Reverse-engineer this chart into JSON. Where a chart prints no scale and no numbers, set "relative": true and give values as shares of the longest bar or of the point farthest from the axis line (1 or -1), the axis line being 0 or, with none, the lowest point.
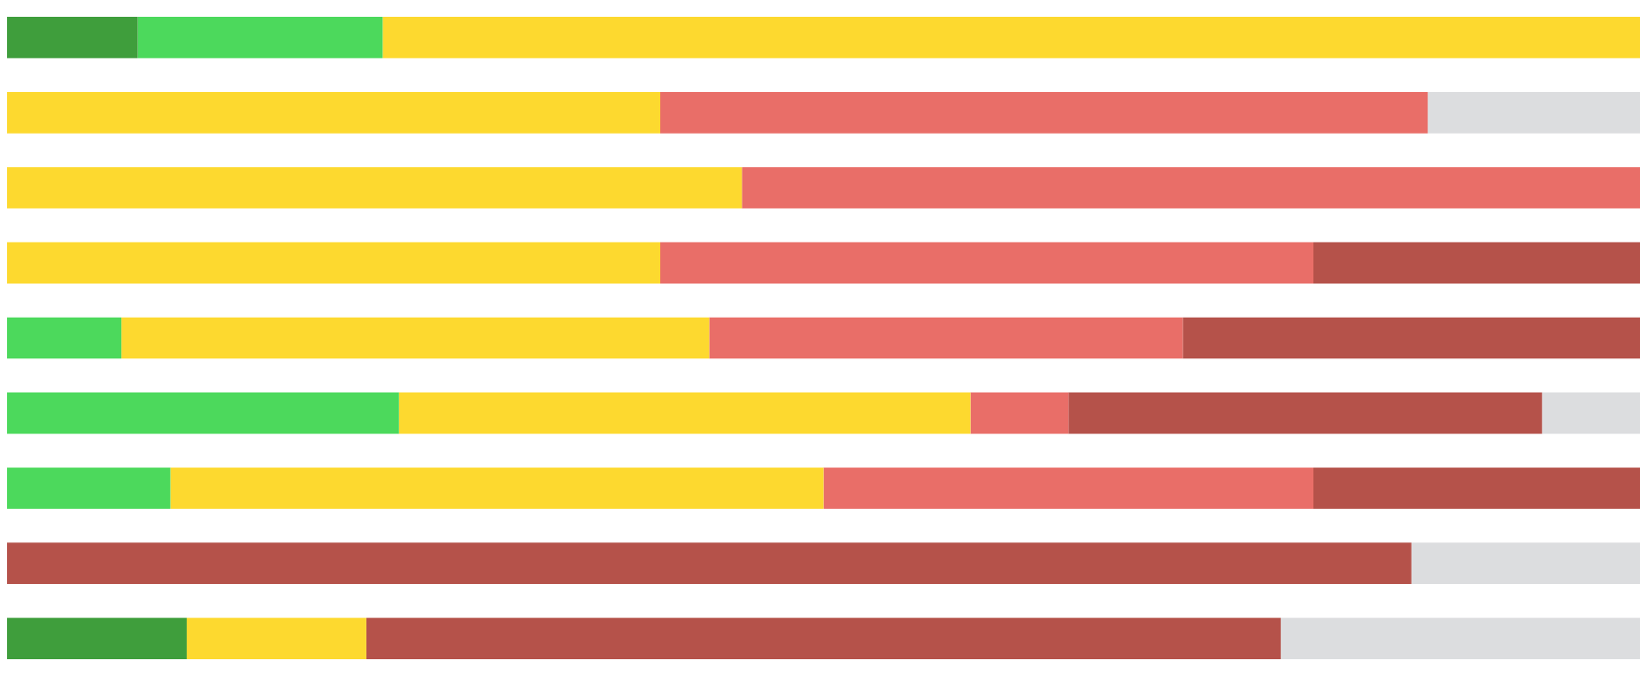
{
  "chart_data": {
    "type": "bar",
    "orientation": "horizontal",
    "stacked": true,
    "relative": true,
    "legend": false,
    "categories": [
      null,
      null,
      null,
      null,
      null,
      null,
      null,
      null,
      null
    ],
    "series": [
      {
        "color": "#3f9e3c",
        "values": [
          0.08,
          null,
          null,
          null,
          null,
          null,
          null,
          null,
          0.11
        ]
      },
      {
        "color": "#4cd95c",
        "values": [
          0.15,
          null,
          null,
          null,
          0.07,
          0.24,
          0.1,
          null,
          null
        ]
      },
      {
        "color": "#fdd92f",
        "values": [
          0.77,
          0.4,
          0.45,
          0.4,
          0.36,
          0.35,
          0.4,
          null,
          0.11
        ]
      },
      {
        "color": "#e96e68",
        "values": [
          null,
          0.47,
          0.55,
          0.4,
          0.29,
          0.06,
          0.3,
          null,
          null
        ]
      },
      {
        "color": "#b5524a",
        "values": [
          null,
          null,
          null,
          0.2,
          0.28,
          0.29,
          0.2,
          0.86,
          0.56
        ]
      },
      {
        "color": "#dcdddf",
        "values": [
          null,
          0.13,
          null,
          null,
          null,
          0.06,
          null,
          0.14,
          0.22
        ]
      }
    ]
  }
}
